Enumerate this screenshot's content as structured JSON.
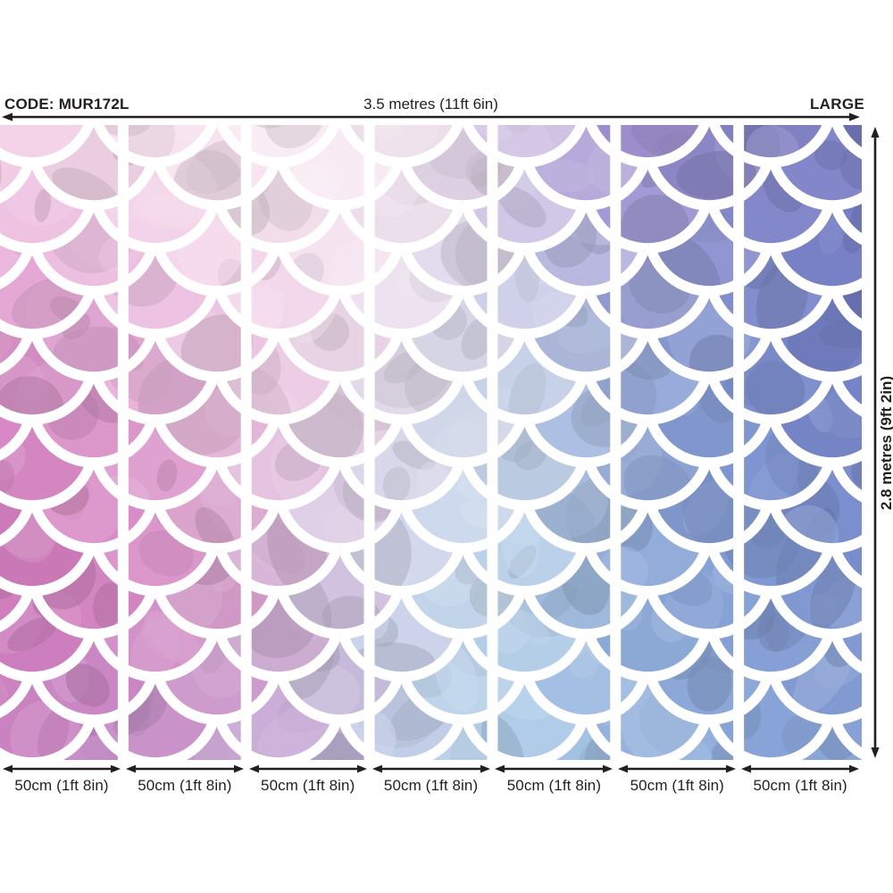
{
  "header": {
    "code": "CODE: MUR172L",
    "width_dimension": "3.5 metres (11ft 6in)",
    "size_tag": "LARGE"
  },
  "side": {
    "height_dimension": "2.8 metres (9ft 2in)"
  },
  "panels": {
    "count": 7,
    "labels": [
      "50cm (1ft 8in)",
      "50cm (1ft 8in)",
      "50cm (1ft 8in)",
      "50cm (1ft 8in)",
      "50cm (1ft 8in)",
      "50cm (1ft 8in)",
      "50cm (1ft 8in)"
    ]
  },
  "colors": {
    "text": "#231f20",
    "arrow": "#231f20",
    "background": "#ffffff",
    "scale_outline": "#ffffff",
    "panel_gap": "#ffffff"
  },
  "mural": {
    "palette": {
      "x_stops": [
        0,
        0.12,
        0.25,
        0.37,
        0.5,
        0.62,
        0.75,
        0.87,
        1
      ],
      "y_stops": [
        0,
        0.33,
        0.66,
        1
      ],
      "grid": [
        [
          "#f3cfe7",
          "#f6dcee",
          "#f9e6f2",
          "#fbeef5",
          "#f2e3f0",
          "#cdbfe3",
          "#a291d2",
          "#8886ca",
          "#7a7fc6"
        ],
        [
          "#dc8fc8",
          "#e3a5d4",
          "#eec5e3",
          "#f3d9eb",
          "#e3e0ef",
          "#c9d3ea",
          "#95a8d9",
          "#7e91cf",
          "#727fc6"
        ],
        [
          "#cf79ba",
          "#d583c0",
          "#dc9ecd",
          "#d9c4e2",
          "#cddcee",
          "#b6cfe9",
          "#8fabda",
          "#7d97d2",
          "#7b90ce"
        ],
        [
          "#c97fc0",
          "#bd7fc2",
          "#c49ed0",
          "#c6b4dc",
          "#b8d0e9",
          "#a8c8e6",
          "#95b4de",
          "#88a6d8",
          "#8ba5d8"
        ]
      ]
    }
  }
}
